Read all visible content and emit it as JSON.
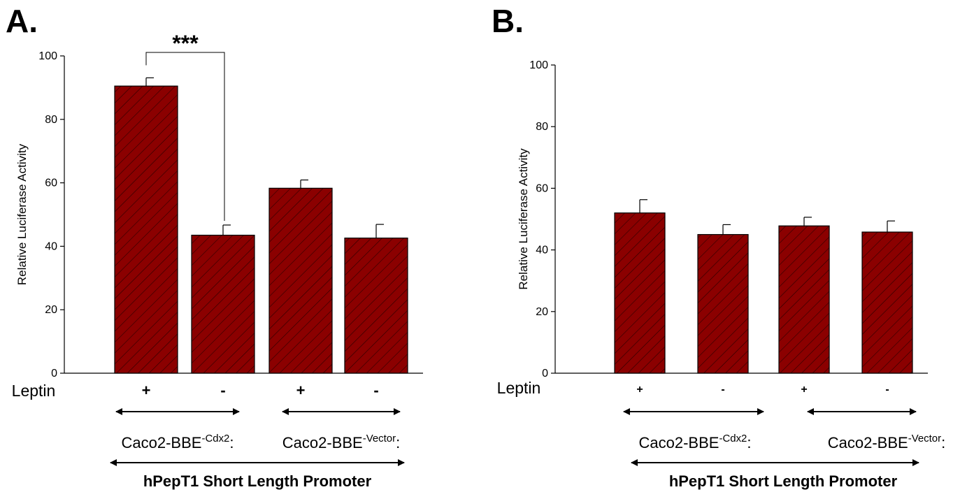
{
  "colors": {
    "bar_fill": "#8b0000",
    "hatch": "#2a0000",
    "ink": "#000000"
  },
  "panels": [
    {
      "id": "a",
      "panel_label": "A.",
      "leptin_row_label": "Leptin",
      "leptin_signs": [
        "+",
        "-",
        "+",
        "-"
      ],
      "group_labels": [
        {
          "base": "Caco2-BBE",
          "sup": "-Cdx2",
          "tail": ":"
        },
        {
          "base": "Caco2-BBE",
          "sup": "-Vector",
          "tail": ":"
        }
      ],
      "promoter_label": "hPepT1 Short Length Promoter",
      "significance": {
        "text": "***",
        "from_bar": 0,
        "to_bar": 1
      },
      "ylabel": "Relative Luciferase Activity",
      "ylim": [
        0,
        100
      ],
      "yticks": [
        0,
        20,
        40,
        60,
        80,
        100
      ],
      "values": [
        90.5,
        43.5,
        58.3,
        42.6
      ],
      "errors": [
        2.6,
        3.2,
        2.6,
        4.3
      ]
    },
    {
      "id": "b",
      "panel_label": "B.",
      "leptin_row_label": "Leptin",
      "leptin_signs": [
        "+",
        "-",
        "+",
        "-"
      ],
      "group_labels": [
        {
          "base": "Caco2-BBE",
          "sup": "-Cdx2",
          "tail": ":"
        },
        {
          "base": "Caco2-BBE",
          "sup": "-Vector",
          "tail": ":"
        }
      ],
      "promoter_label": "hPepT1 Short Length Promoter",
      "significance": null,
      "ylabel": "Relative Luciferase Activity",
      "ylim": [
        0,
        100
      ],
      "yticks": [
        0,
        20,
        40,
        60,
        80,
        100
      ],
      "values": [
        52.0,
        45.0,
        47.8,
        45.8
      ],
      "errors": [
        4.3,
        3.2,
        2.8,
        3.6
      ]
    }
  ],
  "chart_data": [
    {
      "type": "bar",
      "categories": [
        "+",
        "-",
        "+",
        "-"
      ],
      "series": [
        {
          "values": [
            90.5,
            43.5,
            58.3,
            42.6
          ],
          "errors": [
            2.6,
            3.2,
            2.6,
            4.3
          ]
        }
      ],
      "title": "",
      "xlabel": "Leptin",
      "ylabel": "Relative Luciferase Activity",
      "ylim": [
        0,
        100
      ],
      "grid": false,
      "annotations": [
        "***"
      ]
    },
    {
      "type": "bar",
      "categories": [
        "+",
        "-",
        "+",
        "-"
      ],
      "series": [
        {
          "values": [
            52.0,
            45.0,
            47.8,
            45.8
          ],
          "errors": [
            4.3,
            3.2,
            2.8,
            3.6
          ]
        }
      ],
      "title": "",
      "xlabel": "Leptin",
      "ylabel": "Relative Luciferase Activity",
      "ylim": [
        0,
        100
      ],
      "grid": false,
      "annotations": []
    }
  ]
}
